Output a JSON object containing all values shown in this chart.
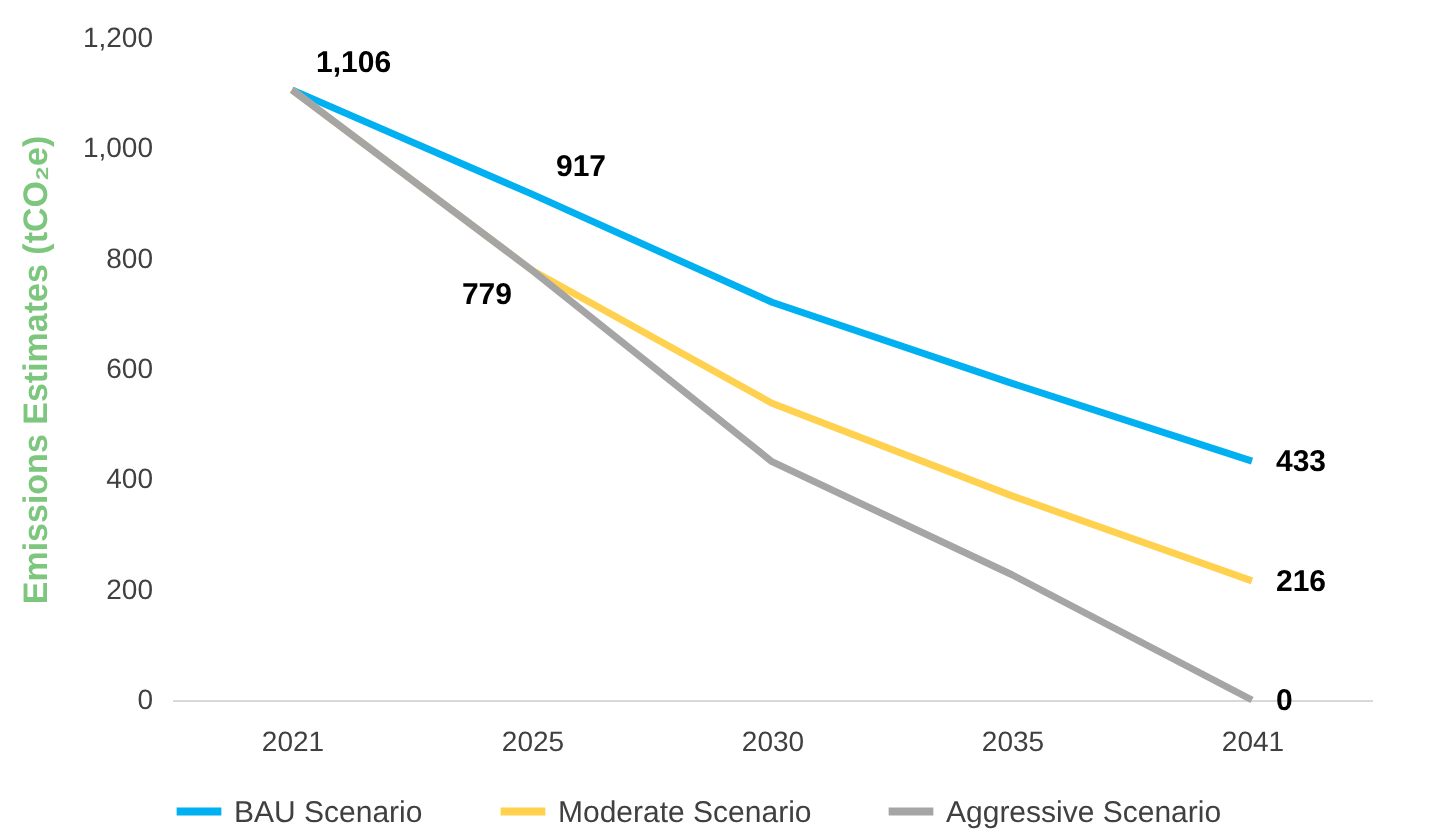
{
  "chart_data": {
    "type": "line",
    "ylabel": "Emissions Estimates (tCO₂e)",
    "categories": [
      "2021",
      "2025",
      "2030",
      "2035",
      "2041"
    ],
    "ylim": [
      0,
      1200
    ],
    "yticks": [
      0,
      {
        "value": 200,
        "label": "200"
      },
      {
        "value": 400,
        "label": "400"
      },
      {
        "value": 600,
        "label": "600"
      },
      {
        "value": 800,
        "label": "800"
      },
      {
        "value": 1000,
        "label": "1,000"
      },
      {
        "value": 1200,
        "label": "1,200"
      }
    ],
    "grid": false,
    "legend": "bottom",
    "marker": "none",
    "line_style": "solid",
    "series": [
      {
        "name": "BAU Scenario",
        "color": "#00b0f0",
        "values": [
          1106,
          917,
          721,
          574,
          433
        ],
        "value_labels": [
          "1,106",
          "917",
          null,
          null,
          "433"
        ]
      },
      {
        "name": "Moderate Scenario",
        "color": "#ffd14f",
        "values": [
          1106,
          779,
          538,
          370,
          216
        ],
        "value_labels": [
          null,
          null,
          null,
          null,
          "216"
        ]
      },
      {
        "name": "Aggressive Scenario",
        "color": "#a5a5a5",
        "values": [
          1106,
          779,
          432,
          227,
          0
        ],
        "value_labels": [
          null,
          "779",
          null,
          null,
          "0"
        ]
      }
    ]
  }
}
